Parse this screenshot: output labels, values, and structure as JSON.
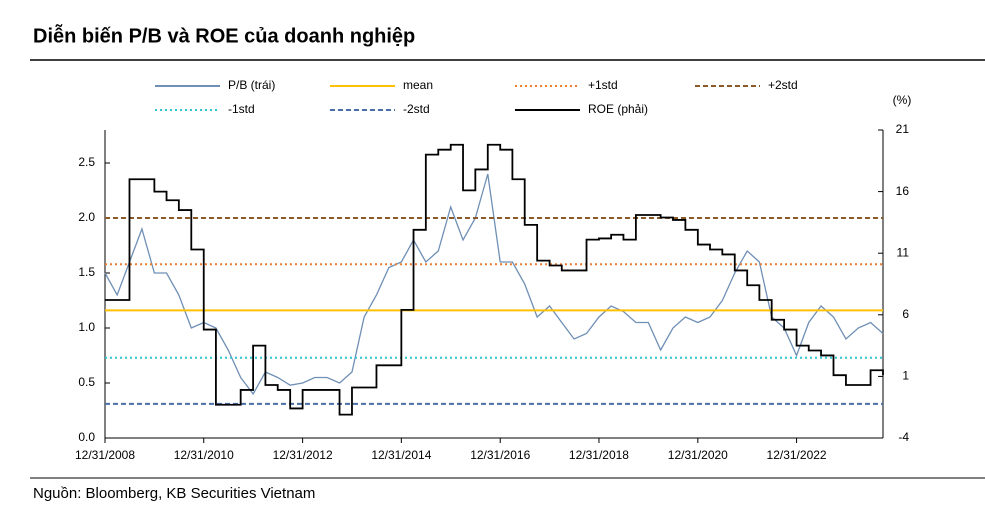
{
  "chart_data": {
    "type": "line",
    "title": "Diễn biến P/B và ROE của doanh nghiệp",
    "source": "Nguồn: Bloomberg, KB Securities Vietnam",
    "y2_label": "(%)",
    "x": [
      "2008-12-31",
      "2009-03-31",
      "2009-06-30",
      "2009-09-30",
      "2009-12-31",
      "2010-03-31",
      "2010-06-30",
      "2010-09-30",
      "2010-12-31",
      "2011-03-31",
      "2011-06-30",
      "2011-09-30",
      "2011-12-31",
      "2012-03-31",
      "2012-06-30",
      "2012-09-30",
      "2012-12-31",
      "2013-03-31",
      "2013-06-30",
      "2013-09-30",
      "2013-12-31",
      "2014-03-31",
      "2014-06-30",
      "2014-09-30",
      "2014-12-31",
      "2015-03-31",
      "2015-06-30",
      "2015-09-30",
      "2015-12-31",
      "2016-03-31",
      "2016-06-30",
      "2016-09-30",
      "2016-12-31",
      "2017-03-31",
      "2017-06-30",
      "2017-09-30",
      "2017-12-31",
      "2018-03-31",
      "2018-06-30",
      "2018-09-30",
      "2018-12-31",
      "2019-03-31",
      "2019-06-30",
      "2019-09-30",
      "2019-12-31",
      "2020-03-31",
      "2020-06-30",
      "2020-09-30",
      "2020-12-31",
      "2021-03-31",
      "2021-06-30",
      "2021-09-30",
      "2021-12-31",
      "2022-03-31",
      "2022-06-30",
      "2022-09-30",
      "2022-12-31",
      "2023-03-31",
      "2023-06-30",
      "2023-09-30",
      "2023-12-31",
      "2024-03-31",
      "2024-06-30",
      "2024-09-30"
    ],
    "xlim": [
      "2008-12-31",
      "2024-09-30"
    ],
    "xticks": [
      {
        "value": "2008-12-31",
        "label": "12/31/2008"
      },
      {
        "value": "2010-12-31",
        "label": "12/31/2010"
      },
      {
        "value": "2012-12-31",
        "label": "12/31/2012"
      },
      {
        "value": "2014-12-31",
        "label": "12/31/2014"
      },
      {
        "value": "2016-12-31",
        "label": "12/31/2016"
      },
      {
        "value": "2018-12-31",
        "label": "12/31/2018"
      },
      {
        "value": "2020-12-31",
        "label": "12/31/2020"
      },
      {
        "value": "2022-12-31",
        "label": "12/31/2022"
      }
    ],
    "ylim": [
      0,
      2.8
    ],
    "yticks": [
      {
        "value": 0,
        "label": "0.0"
      },
      0.5,
      {
        "value": 1,
        "label": "1.0"
      },
      1.5,
      {
        "value": 2,
        "label": "2.0"
      },
      2.5
    ],
    "y2lim": [
      -4,
      21
    ],
    "y2ticks": [
      -4,
      1,
      6,
      11,
      16,
      21
    ],
    "series": [
      {
        "name": "P/B (trái)",
        "color": "#6f8fb5",
        "style": "solid",
        "values": [
          1.5,
          1.3,
          1.6,
          1.9,
          1.5,
          1.5,
          1.3,
          1.0,
          1.05,
          1.0,
          0.8,
          0.55,
          0.4,
          0.6,
          0.55,
          0.48,
          0.5,
          0.55,
          0.55,
          0.5,
          0.6,
          1.1,
          1.3,
          1.55,
          1.6,
          1.8,
          1.6,
          1.7,
          2.1,
          1.8,
          2.0,
          2.4,
          1.6,
          1.6,
          1.4,
          1.1,
          1.2,
          1.05,
          0.9,
          0.95,
          1.1,
          1.2,
          1.15,
          1.05,
          1.05,
          0.8,
          1.0,
          1.1,
          1.05,
          1.1,
          1.25,
          1.5,
          1.7,
          1.6,
          1.1,
          1.0,
          0.75,
          1.05,
          1.2,
          1.1,
          0.9,
          1.0,
          1.05,
          0.95
        ]
      },
      {
        "name": "mean",
        "color": "#ffc000",
        "style": "solid",
        "value": 1.16
      },
      {
        "name": "+1std",
        "color": "#ed7d31",
        "style": "dotted",
        "value": 1.58
      },
      {
        "name": "+2std",
        "color": "#8a5a2b",
        "style": "dashed",
        "value": 2.0
      },
      {
        "name": "-1std",
        "color": "#2ec4d0",
        "style": "dotted",
        "value": 0.73
      },
      {
        "name": "-2std",
        "color": "#4a6fa5",
        "style": "dashed",
        "value": 0.31
      },
      {
        "name": "ROE (phải)",
        "color": "#000000",
        "style": "step",
        "axis": "y2",
        "values": [
          7.2,
          7.2,
          17,
          17,
          16,
          15.3,
          14.5,
          11.3,
          4.8,
          -1.3,
          -1.3,
          -0.1,
          3.5,
          0.3,
          -0.1,
          -1.6,
          -0.1,
          -0.1,
          -0.1,
          -2.1,
          0.1,
          0.1,
          1.9,
          1.9,
          6.4,
          12.9,
          19,
          19.4,
          19.8,
          16.1,
          17.8,
          19.8,
          19.4,
          17,
          13.3,
          10.4,
          10,
          9.6,
          9.6,
          12.1,
          12.2,
          12.5,
          12.1,
          14.1,
          14.1,
          13.9,
          13.7,
          12.9,
          11.7,
          11.3,
          10.9,
          9.6,
          8.4,
          7.2,
          5.6,
          4.8,
          3.5,
          3.1,
          2.7,
          1.1,
          0.3,
          0.3,
          1.5,
          1.1
        ]
      }
    ]
  }
}
